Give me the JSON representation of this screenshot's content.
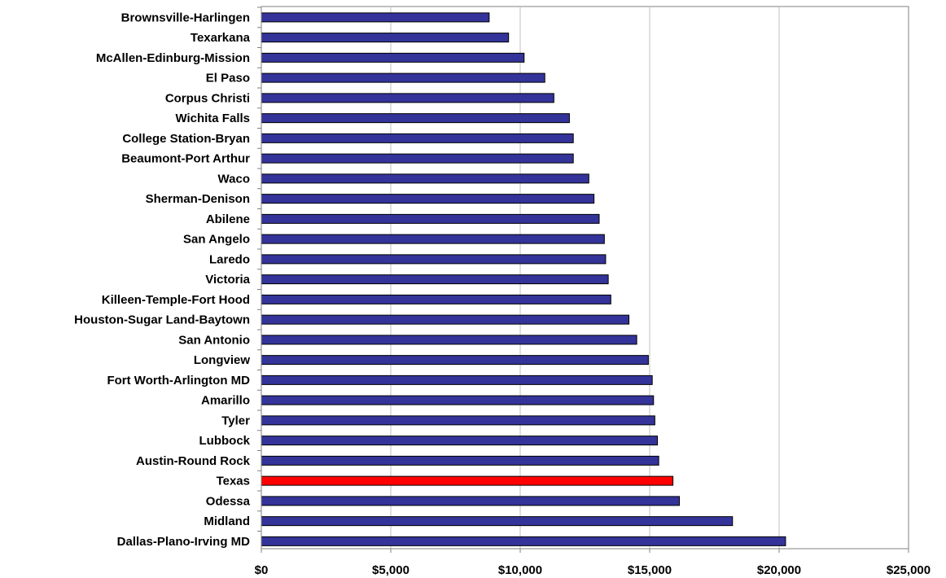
{
  "chart_data": {
    "type": "bar",
    "orientation": "horizontal",
    "title": "",
    "xlabel": "",
    "ylabel": "",
    "categories": [
      "Brownsville-Harlingen",
      "Texarkana",
      "McAllen-Edinburg-Mission",
      "El Paso",
      "Corpus Christi",
      "Wichita Falls",
      "College Station-Bryan",
      "Beaumont-Port Arthur",
      "Waco",
      "Sherman-Denison",
      "Abilene",
      "San Angelo",
      "Laredo",
      "Victoria",
      "Killeen-Temple-Fort Hood",
      "Houston-Sugar Land-Baytown",
      "San Antonio",
      "Longview",
      "Fort Worth-Arlington MD",
      "Amarillo",
      "Tyler",
      "Lubbock",
      "Austin-Round Rock",
      "Texas",
      "Odessa",
      "Midland",
      "Dallas-Plano-Irving MD"
    ],
    "values": [
      8800,
      9550,
      10150,
      10950,
      11300,
      11900,
      12050,
      12050,
      12650,
      12850,
      13050,
      13250,
      13300,
      13400,
      13500,
      14200,
      14500,
      14950,
      15100,
      15150,
      15200,
      15300,
      15350,
      15900,
      16150,
      18200,
      20250
    ],
    "highlight_category": "Texas",
    "xlim": [
      0,
      25000
    ],
    "x_ticks": [
      0,
      5000,
      10000,
      15000,
      20000,
      25000
    ],
    "x_tick_labels": [
      "$0",
      "$5,000",
      "$10,000",
      "$15,000",
      "$20,000",
      "$25,000"
    ],
    "grid": "vertical",
    "legend": "none",
    "colors": {
      "bar_fill": "#333399",
      "highlight_fill": "#ff0000",
      "bar_stroke": "#000000",
      "gridline": "#c0c0c0",
      "axis": "#808080"
    }
  }
}
